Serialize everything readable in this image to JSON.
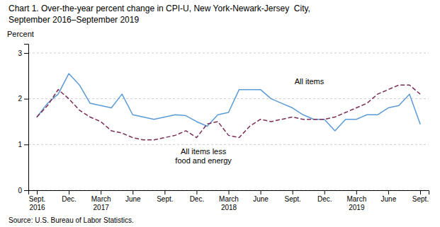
{
  "chart_data": {
    "type": "line",
    "title": "Chart 1. Over-the-year percent change in CPI-U, New York-Newark-Jersey  City,",
    "subtitle": "September 2016–September 2019",
    "ylabel": "Percent",
    "source": "Source: U.S. Bureau of Labor Statistics.",
    "categories": [
      "Sept.\n2016",
      null,
      null,
      "Dec.",
      null,
      null,
      "March\n2017",
      null,
      null,
      "June",
      null,
      null,
      "Sept.",
      null,
      null,
      "Dec.",
      null,
      null,
      "March\n2018",
      null,
      null,
      "June",
      null,
      null,
      "Sept.",
      null,
      null,
      "Dec.",
      null,
      null,
      "March\n2019",
      null,
      null,
      "June",
      null,
      null,
      "Sept."
    ],
    "series": [
      {
        "color": "#5b9bd5",
        "line_style": "solid",
        "values": [
          1.6,
          1.9,
          2.1,
          2.55,
          2.3,
          1.9,
          1.85,
          1.8,
          2.1,
          1.65,
          1.6,
          1.55,
          1.6,
          1.65,
          1.63,
          1.5,
          1.4,
          1.65,
          1.7,
          2.2,
          2.2,
          2.2,
          2.0,
          1.9,
          1.8,
          1.65,
          1.55,
          1.55,
          1.3,
          1.55,
          1.55,
          1.65,
          1.65,
          1.8,
          1.85,
          2.1,
          1.45
        ]
      },
      {
        "color": "#7b2d55",
        "line_style": "dashed",
        "values": [
          1.6,
          1.85,
          2.2,
          2.0,
          1.75,
          1.6,
          1.5,
          1.3,
          1.25,
          1.15,
          1.1,
          1.1,
          1.15,
          1.2,
          1.3,
          1.15,
          1.45,
          1.5,
          1.2,
          1.15,
          1.4,
          1.55,
          1.5,
          1.55,
          1.6,
          1.55,
          1.55,
          1.55,
          1.6,
          1.7,
          1.8,
          1.9,
          2.1,
          2.2,
          2.3,
          2.3,
          2.1
        ]
      }
    ],
    "annotations": [
      {
        "text": "All items",
        "x": 24.2,
        "y": 2.28
      },
      {
        "text": "All items less\nfood and energy",
        "x": 13.0,
        "y": 0.95
      }
    ],
    "ylim": [
      0,
      3.2
    ],
    "yticks": [
      0,
      1,
      2,
      3
    ],
    "grid": true
  }
}
